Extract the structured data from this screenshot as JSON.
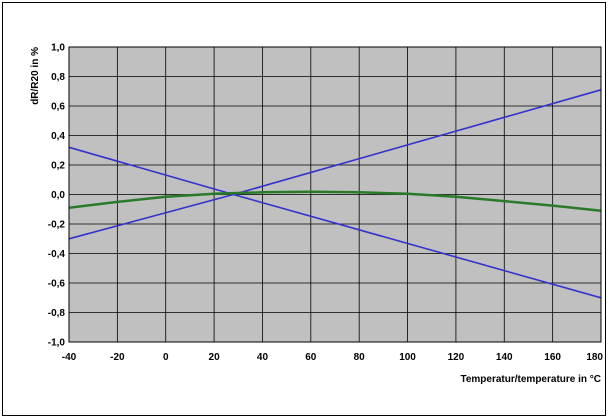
{
  "chart_data": {
    "type": "line",
    "xlabel": "Temperatur/temperature in °C",
    "ylabel": "dR/R20  in %",
    "xlim": [
      -40,
      180
    ],
    "ylim": [
      -1.0,
      1.0
    ],
    "x_ticks": [
      -40,
      -20,
      0,
      20,
      40,
      60,
      80,
      100,
      120,
      140,
      160,
      180
    ],
    "x_tick_labels": [
      "-40",
      "-20",
      "0",
      "20",
      "40",
      "60",
      "80",
      "100",
      "120",
      "140",
      "160",
      "180"
    ],
    "y_ticks": [
      1.0,
      0.8,
      0.6,
      0.4,
      0.2,
      0.0,
      -0.2,
      -0.4,
      -0.6,
      -0.8,
      -1.0
    ],
    "y_tick_labels": [
      "1,0",
      "0,8",
      "0,6",
      "0,4",
      "0,2",
      "0,0",
      "-0,2",
      "-0,4",
      "-0,6",
      "-0,8",
      "-1,0"
    ],
    "grid": true,
    "legend": "none",
    "plot_background": "#c0c0c0",
    "series": [
      {
        "color": "#3333cc",
        "x": [
          -40,
          28,
          180
        ],
        "y": [
          -0.3,
          0.0,
          0.71
        ]
      },
      {
        "color": "#3333cc",
        "x": [
          -40,
          28,
          180
        ],
        "y": [
          0.32,
          0.0,
          -0.7
        ]
      },
      {
        "color": "#2a7a2a",
        "x": [
          -40,
          -20,
          0,
          20,
          40,
          60,
          80,
          100,
          120,
          140,
          160,
          180
        ],
        "y": [
          -0.09,
          -0.05,
          -0.015,
          0.005,
          0.015,
          0.018,
          0.015,
          0.005,
          -0.015,
          -0.045,
          -0.075,
          -0.11
        ]
      }
    ]
  }
}
